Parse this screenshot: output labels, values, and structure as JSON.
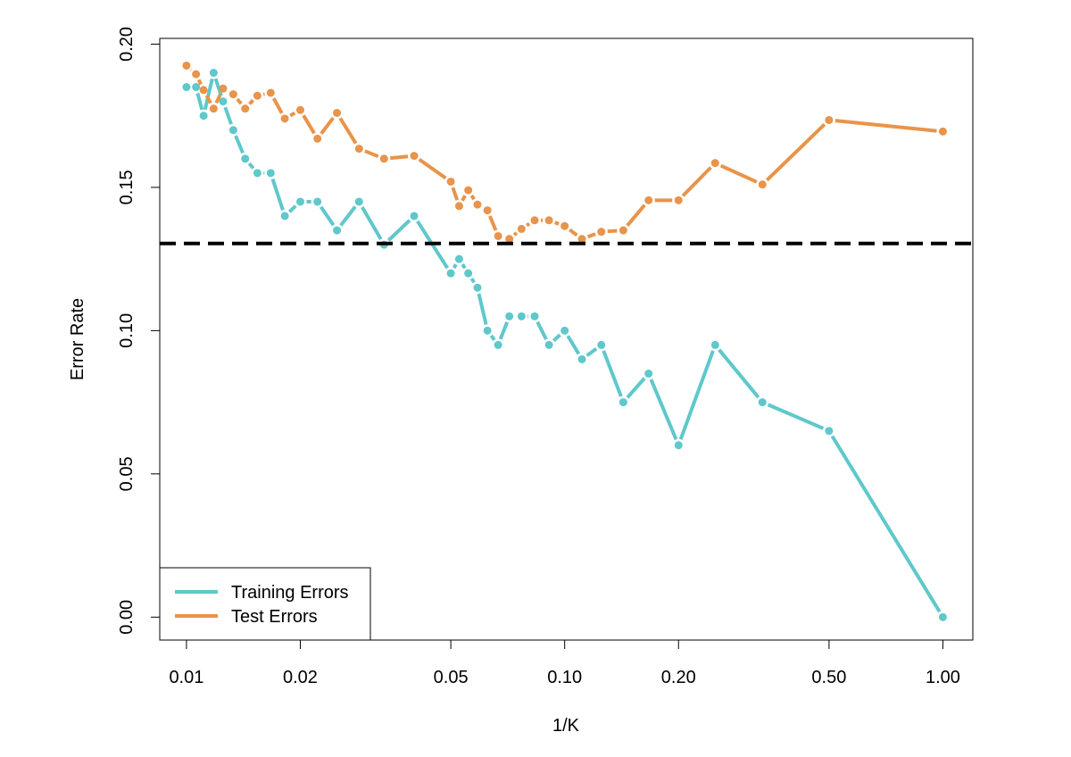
{
  "chart_data": {
    "type": "line",
    "title": "",
    "xlabel": "1/K",
    "ylabel": "Error Rate",
    "x_scale": "log",
    "xlim": [
      0.0085,
      1.2
    ],
    "ylim": [
      -0.008,
      0.202
    ],
    "x_ticks": [
      {
        "value": 0.01,
        "label": "0.01"
      },
      {
        "value": 0.02,
        "label": "0.02"
      },
      {
        "value": 0.05,
        "label": "0.05"
      },
      {
        "value": 0.1,
        "label": "0.10"
      },
      {
        "value": 0.2,
        "label": "0.20"
      },
      {
        "value": 0.5,
        "label": "0.50"
      },
      {
        "value": 1.0,
        "label": "1.00"
      }
    ],
    "y_ticks": [
      {
        "value": 0.0,
        "label": "0.00"
      },
      {
        "value": 0.05,
        "label": "0.05"
      },
      {
        "value": 0.1,
        "label": "0.10"
      },
      {
        "value": 0.15,
        "label": "0.15"
      },
      {
        "value": 0.2,
        "label": "0.20"
      }
    ],
    "grid": false,
    "legend": {
      "position": "bottom-left",
      "entries": [
        "Training Errors",
        "Test Errors"
      ]
    },
    "reference_line": {
      "y": 0.1304,
      "color": "#000000",
      "style": "dashed"
    },
    "series": [
      {
        "name": "Training Errors",
        "color": "#5FC8CB",
        "points": [
          [
            0.01,
            0.185
          ],
          [
            0.0106,
            0.185
          ],
          [
            0.0111,
            0.175
          ],
          [
            0.0118,
            0.19
          ],
          [
            0.0125,
            0.18
          ],
          [
            0.0133,
            0.17
          ],
          [
            0.0143,
            0.16
          ],
          [
            0.0154,
            0.155
          ],
          [
            0.0167,
            0.155
          ],
          [
            0.0182,
            0.14
          ],
          [
            0.02,
            0.145
          ],
          [
            0.0222,
            0.145
          ],
          [
            0.025,
            0.135
          ],
          [
            0.0286,
            0.145
          ],
          [
            0.0333,
            0.13
          ],
          [
            0.04,
            0.14
          ],
          [
            0.05,
            0.12
          ],
          [
            0.0526,
            0.125
          ],
          [
            0.0556,
            0.12
          ],
          [
            0.0588,
            0.115
          ],
          [
            0.0625,
            0.1
          ],
          [
            0.0667,
            0.095
          ],
          [
            0.0714,
            0.105
          ],
          [
            0.0769,
            0.105
          ],
          [
            0.0833,
            0.105
          ],
          [
            0.0909,
            0.095
          ],
          [
            0.1,
            0.1
          ],
          [
            0.1111,
            0.09
          ],
          [
            0.125,
            0.095
          ],
          [
            0.1429,
            0.075
          ],
          [
            0.1667,
            0.085
          ],
          [
            0.2,
            0.06
          ],
          [
            0.25,
            0.095
          ],
          [
            0.3333,
            0.075
          ],
          [
            0.5,
            0.065
          ],
          [
            1.0,
            0.0
          ]
        ]
      },
      {
        "name": "Test Errors",
        "color": "#E8944A",
        "points": [
          [
            0.01,
            0.1925
          ],
          [
            0.0106,
            0.1895
          ],
          [
            0.0111,
            0.184
          ],
          [
            0.0118,
            0.1775
          ],
          [
            0.0125,
            0.1845
          ],
          [
            0.0133,
            0.1825
          ],
          [
            0.0143,
            0.1775
          ],
          [
            0.0154,
            0.182
          ],
          [
            0.0167,
            0.183
          ],
          [
            0.0182,
            0.174
          ],
          [
            0.02,
            0.177
          ],
          [
            0.0222,
            0.167
          ],
          [
            0.025,
            0.176
          ],
          [
            0.0286,
            0.1635
          ],
          [
            0.0333,
            0.16
          ],
          [
            0.04,
            0.161
          ],
          [
            0.05,
            0.152
          ],
          [
            0.0526,
            0.1435
          ],
          [
            0.0556,
            0.149
          ],
          [
            0.0588,
            0.144
          ],
          [
            0.0625,
            0.142
          ],
          [
            0.0667,
            0.133
          ],
          [
            0.0714,
            0.132
          ],
          [
            0.0769,
            0.1355
          ],
          [
            0.0833,
            0.1385
          ],
          [
            0.0909,
            0.1385
          ],
          [
            0.1,
            0.1365
          ],
          [
            0.1111,
            0.132
          ],
          [
            0.125,
            0.1345
          ],
          [
            0.1429,
            0.135
          ],
          [
            0.1667,
            0.1455
          ],
          [
            0.2,
            0.1455
          ],
          [
            0.25,
            0.1585
          ],
          [
            0.3333,
            0.151
          ],
          [
            0.5,
            0.1735
          ],
          [
            1.0,
            0.1695
          ]
        ]
      }
    ]
  }
}
